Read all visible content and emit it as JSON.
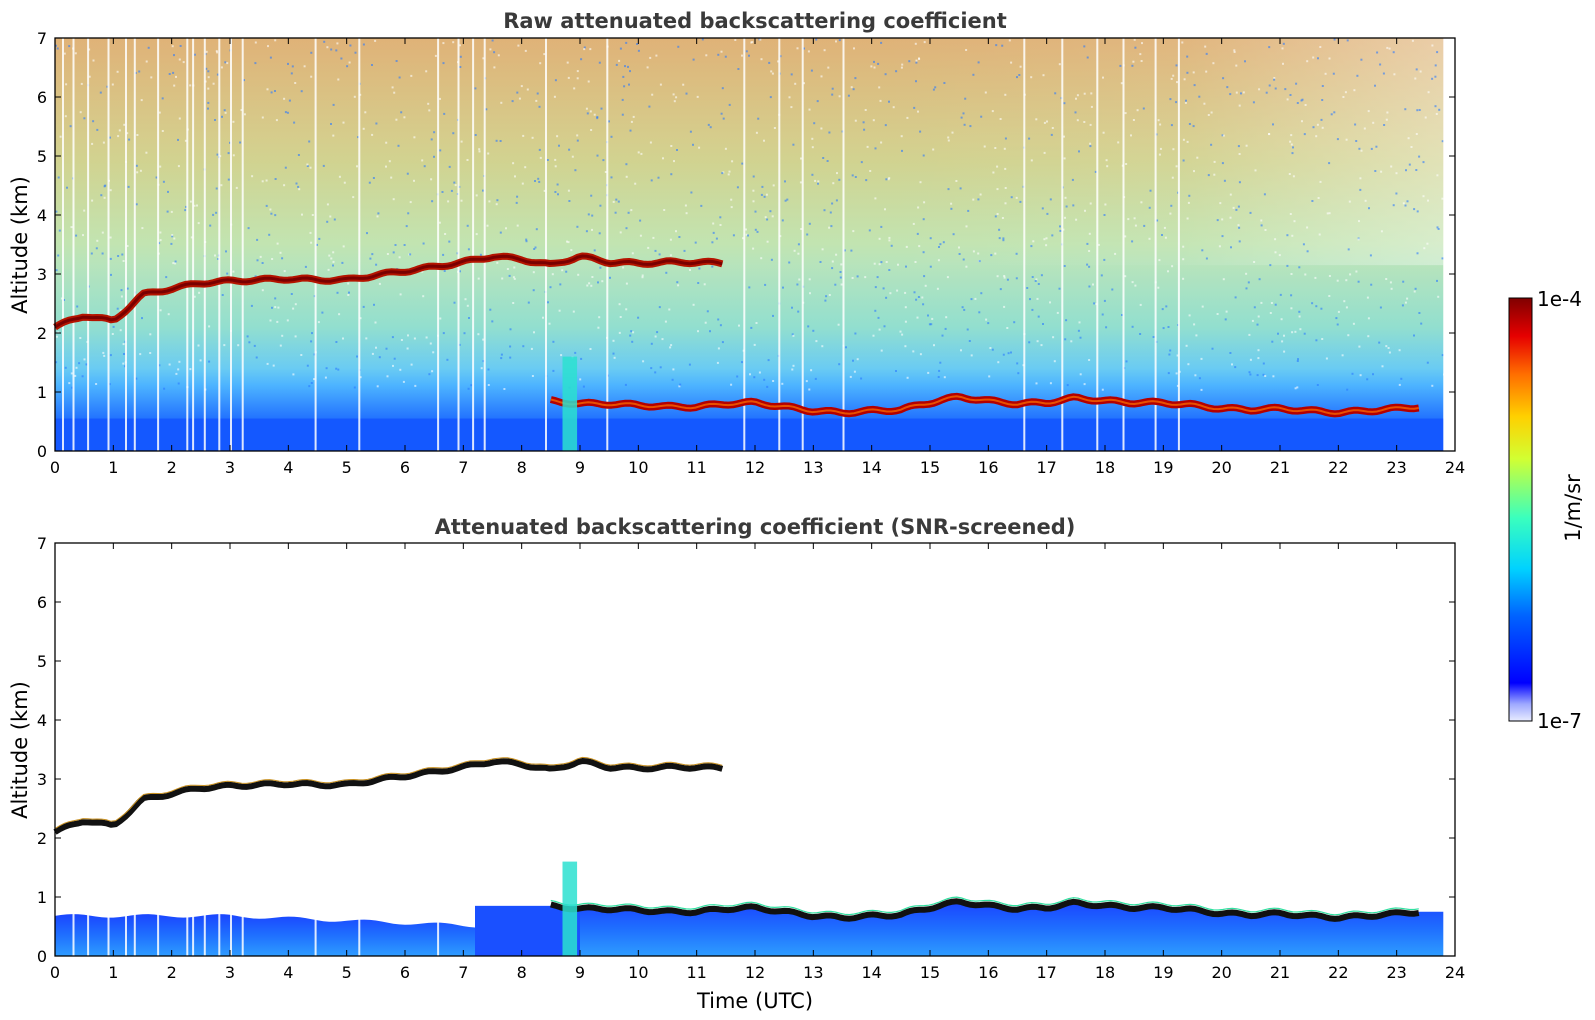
{
  "chart_data": [
    {
      "type": "heatmap",
      "title": "Raw attenuated backscattering coefficient",
      "xlabel": "",
      "ylabel": "Altitude (km)",
      "xlim": [
        0,
        24
      ],
      "ylim": [
        0,
        7
      ],
      "x_ticks": [
        "0",
        "1",
        "2",
        "3",
        "4",
        "5",
        "6",
        "7",
        "8",
        "9",
        "10",
        "11",
        "12",
        "13",
        "14",
        "15",
        "16",
        "17",
        "18",
        "19",
        "20",
        "21",
        "22",
        "23",
        "24"
      ],
      "y_ticks": [
        "0",
        "1",
        "2",
        "3",
        "4",
        "5",
        "6",
        "7"
      ],
      "data_end_time": 23.8,
      "layers": [
        {
          "type": "cloud",
          "x": [
            0.0,
            0.5,
            1.0,
            1.5,
            2.0,
            2.5,
            3.0,
            3.5,
            4.0,
            4.5,
            5.0,
            5.5,
            6.0,
            6.5,
            7.0,
            7.5,
            8.0,
            8.5,
            9.0,
            9.5,
            10.0,
            10.5,
            11.0,
            11.5
          ],
          "y": [
            2.1,
            2.3,
            2.2,
            2.65,
            2.75,
            2.85,
            2.88,
            2.9,
            2.92,
            2.9,
            2.9,
            2.98,
            3.05,
            3.12,
            3.2,
            3.3,
            3.25,
            3.15,
            3.3,
            3.2,
            3.18,
            3.2,
            3.2,
            3.18
          ]
        },
        {
          "type": "boundary_layer",
          "x": [
            8.5,
            9.0,
            9.5,
            10.0,
            10.5,
            11.0,
            11.5,
            12.0,
            12.5,
            13.0,
            13.5,
            14.0,
            14.5,
            15.0,
            15.5,
            16.0,
            16.5,
            17.0,
            17.5,
            18.0,
            18.5,
            19.0,
            19.5,
            20.0,
            20.5,
            21.0,
            21.5,
            22.0,
            22.5,
            23.0,
            23.4
          ],
          "y": [
            0.85,
            0.8,
            0.8,
            0.78,
            0.75,
            0.75,
            0.8,
            0.82,
            0.75,
            0.68,
            0.65,
            0.68,
            0.7,
            0.82,
            0.92,
            0.85,
            0.8,
            0.82,
            0.9,
            0.85,
            0.82,
            0.82,
            0.78,
            0.72,
            0.7,
            0.72,
            0.68,
            0.65,
            0.68,
            0.72,
            0.75
          ]
        }
      ]
    },
    {
      "type": "heatmap",
      "title": "Attenuated backscattering coefficient (SNR-screened)",
      "xlabel": "Time (UTC)",
      "ylabel": "Altitude (km)",
      "xlim": [
        0,
        24
      ],
      "ylim": [
        0,
        7
      ],
      "x_ticks": [
        "0",
        "1",
        "2",
        "3",
        "4",
        "5",
        "6",
        "7",
        "8",
        "9",
        "10",
        "11",
        "12",
        "13",
        "14",
        "15",
        "16",
        "17",
        "18",
        "19",
        "20",
        "21",
        "22",
        "23",
        "24"
      ],
      "y_ticks": [
        "0",
        "1",
        "2",
        "3",
        "4",
        "5",
        "6",
        "7"
      ],
      "data_end_time": 23.8,
      "layers": [
        {
          "type": "cloud",
          "x": [
            0.0,
            0.5,
            1.0,
            1.5,
            2.0,
            2.5,
            3.0,
            3.5,
            4.0,
            4.5,
            5.0,
            5.5,
            6.0,
            6.5,
            7.0,
            7.5,
            8.0,
            8.5,
            9.0,
            9.5,
            10.0,
            10.5,
            11.0,
            11.5
          ],
          "y": [
            2.1,
            2.3,
            2.2,
            2.65,
            2.75,
            2.85,
            2.88,
            2.9,
            2.92,
            2.9,
            2.9,
            2.98,
            3.05,
            3.12,
            3.2,
            3.3,
            3.25,
            3.15,
            3.3,
            3.2,
            3.18,
            3.2,
            3.2,
            3.18
          ]
        },
        {
          "type": "boundary_layer",
          "x": [
            8.5,
            9.0,
            9.5,
            10.0,
            10.5,
            11.0,
            11.5,
            12.0,
            12.5,
            13.0,
            13.5,
            14.0,
            14.5,
            15.0,
            15.5,
            16.0,
            16.5,
            17.0,
            17.5,
            18.0,
            18.5,
            19.0,
            19.5,
            20.0,
            20.5,
            21.0,
            21.5,
            22.0,
            22.5,
            23.0,
            23.4
          ],
          "y": [
            0.85,
            0.8,
            0.8,
            0.78,
            0.75,
            0.75,
            0.8,
            0.82,
            0.75,
            0.68,
            0.65,
            0.68,
            0.7,
            0.82,
            0.92,
            0.85,
            0.8,
            0.82,
            0.9,
            0.85,
            0.82,
            0.82,
            0.78,
            0.72,
            0.7,
            0.72,
            0.68,
            0.65,
            0.68,
            0.72,
            0.75
          ]
        }
      ]
    }
  ],
  "colorbar": {
    "label": "1/m/sr",
    "max_label": "1e-4",
    "min_label": "1e-7",
    "scale": "log",
    "colormap": "jet",
    "range": [
      1e-07,
      0.0001
    ]
  }
}
